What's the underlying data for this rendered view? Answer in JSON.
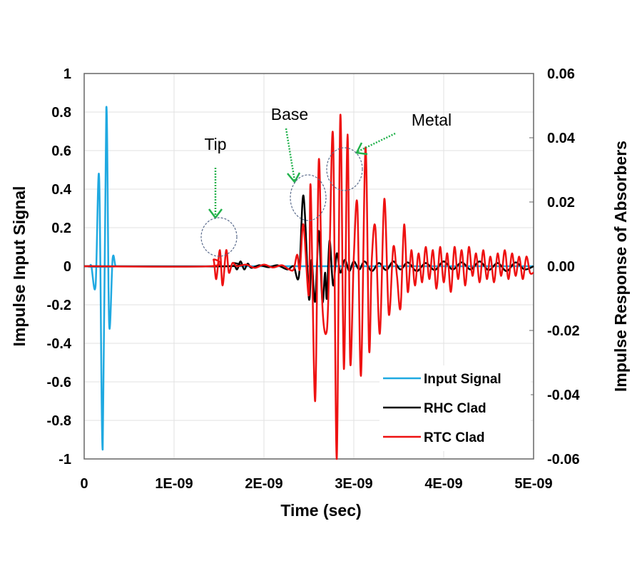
{
  "chart_data": {
    "type": "line",
    "title": "",
    "xlabel": "Time (sec)",
    "ylabel": "Impulse Input Signal",
    "y2label": "Impulse  Response of Absorbers",
    "xlim": [
      0,
      5e-09
    ],
    "ylim": [
      -1,
      1
    ],
    "y2lim": [
      -0.06,
      0.06
    ],
    "grid": true,
    "legend_position": "bottom-right",
    "x_ticks": [
      "0",
      "1E-09",
      "2E-09",
      "3E-09",
      "4E-09",
      "5E-09"
    ],
    "y_ticks": [
      "1",
      "0.8",
      "0.6",
      "0.4",
      "0.2",
      "0",
      "-0.2",
      "-0.4",
      "-0.6",
      "-0.8",
      "-1"
    ],
    "y2_ticks": [
      "0.06",
      "0.04",
      "0.02",
      "0.00",
      "-0.02",
      "-0.04",
      "-0.06"
    ],
    "x_unit_ns_note": "x values below are in nanoseconds (1 ns = 1E-09 sec)",
    "series": [
      {
        "name": "Input Signal",
        "axis": "left",
        "color": "#1fa9e1",
        "x": [
          0,
          0.06,
          0.08,
          0.127,
          0.167,
          0.206,
          0.246,
          0.278,
          0.317,
          0.35,
          0.4,
          5.0
        ],
        "y": [
          0,
          0,
          0,
          -0.1,
          0.46,
          -0.95,
          0.82,
          -0.3,
          0.04,
          0,
          0,
          0
        ]
      },
      {
        "name": "RHC Clad",
        "axis": "right",
        "color": "#000000",
        "x": [
          0,
          1.6,
          1.66,
          1.7,
          1.74,
          1.78,
          1.82,
          1.86,
          1.95,
          2.05,
          2.15,
          2.26,
          2.33,
          2.39,
          2.44,
          2.5,
          2.53,
          2.57,
          2.61,
          2.65,
          2.68,
          2.7,
          2.73,
          2.77,
          2.81,
          2.85,
          2.9,
          2.95,
          3.0,
          3.06,
          3.12,
          3.2,
          3.28,
          3.36,
          3.44,
          3.52,
          3.6,
          3.7,
          3.8,
          3.9,
          4.0,
          4.1,
          4.2,
          4.3,
          4.4,
          4.5,
          4.6,
          4.7,
          4.8,
          4.9,
          5.0
        ],
        "y": [
          0,
          0,
          0.001,
          -0.001,
          0.0015,
          -0.001,
          0.0008,
          -0.0005,
          0.0003,
          -0.0003,
          0.0003,
          -0.001,
          0,
          -0.003,
          0.022,
          -0.01,
          0.002,
          -0.011,
          0.011,
          -0.011,
          -0.002,
          -0.01,
          0.008,
          -0.006,
          0.004,
          -0.002,
          0.002,
          -0.0015,
          0.0015,
          -0.001,
          0.0015,
          -0.0015,
          0.001,
          -0.0012,
          0.0015,
          -0.001,
          0.0012,
          -0.0015,
          0.001,
          -0.0012,
          0.0015,
          -0.001,
          0.0012,
          -0.001,
          0.0015,
          -0.0012,
          0.001,
          -0.0015,
          0.0012,
          -0.001,
          0
        ]
      },
      {
        "name": "RTC Clad",
        "axis": "right",
        "color": "#ee1111",
        "x": [
          0,
          1.4,
          1.44,
          1.47,
          1.51,
          1.54,
          1.58,
          1.61,
          1.65,
          1.7,
          1.8,
          1.9,
          2.0,
          2.1,
          2.2,
          2.28,
          2.33,
          2.37,
          2.4,
          2.44,
          2.5,
          2.52,
          2.57,
          2.61,
          2.65,
          2.7,
          2.73,
          2.77,
          2.81,
          2.85,
          2.89,
          2.93,
          2.96,
          3.0,
          3.04,
          3.08,
          3.13,
          3.17,
          3.2,
          3.24,
          3.29,
          3.34,
          3.39,
          3.44,
          3.48,
          3.52,
          3.56,
          3.6,
          3.64,
          3.68,
          3.72,
          3.76,
          3.8,
          3.84,
          3.88,
          3.92,
          3.96,
          4.0,
          4.04,
          4.08,
          4.12,
          4.16,
          4.2,
          4.24,
          4.28,
          4.32,
          4.36,
          4.4,
          4.44,
          4.48,
          4.52,
          4.56,
          4.6,
          4.64,
          4.68,
          4.72,
          4.76,
          4.8,
          4.84,
          4.88,
          4.92,
          4.96,
          5.0
        ],
        "y": [
          0,
          0,
          0.002,
          -0.004,
          0.005,
          -0.006,
          0.005,
          -0.002,
          0.001,
          0,
          0.0005,
          -0.0005,
          0.0005,
          -0.0004,
          0.0003,
          -0.001,
          -0.001,
          0.0036,
          -0.001,
          0.013,
          -0.009,
          0.025,
          -0.042,
          0.033,
          -0.012,
          -0.02,
          0.004,
          0.04,
          -0.06,
          0.047,
          -0.032,
          0.041,
          -0.03,
          0.003,
          0.019,
          -0.034,
          0.037,
          -0.026,
          0.002,
          0.012,
          -0.021,
          0.021,
          -0.015,
          0.006,
          -0.003,
          -0.013,
          0.013,
          -0.008,
          0.005,
          -0.006,
          0.004,
          -0.005,
          0.006,
          -0.004,
          0.005,
          -0.007,
          0.006,
          -0.005,
          0.004,
          -0.008,
          0.006,
          -0.004,
          0.005,
          -0.006,
          0.006,
          -0.003,
          0.004,
          -0.005,
          0.005,
          -0.004,
          0.003,
          -0.005,
          0.004,
          -0.003,
          0.005,
          -0.004,
          0.004,
          -0.003,
          0.003,
          -0.004,
          0.003,
          -0.002,
          -0.002
        ]
      }
    ],
    "annotations": [
      {
        "text": "Tip",
        "x": 1.5,
        "y2": 0.007
      },
      {
        "text": "Base",
        "x": 2.5,
        "y2": 0.024
      },
      {
        "text": "Metal",
        "x": 2.9,
        "y2": 0.037
      }
    ]
  }
}
